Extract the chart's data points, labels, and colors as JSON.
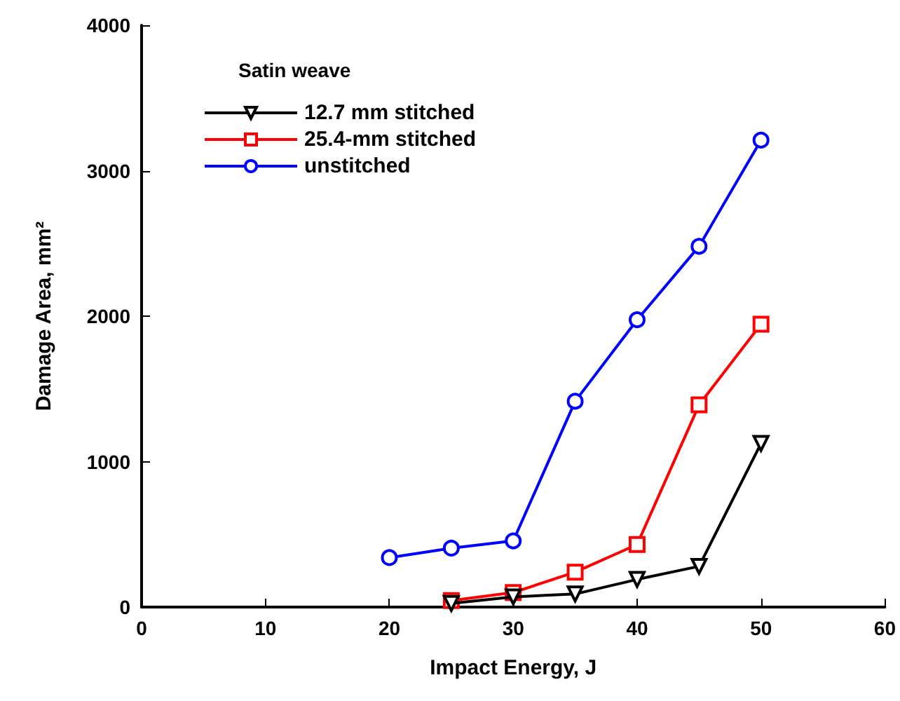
{
  "chart_data": {
    "type": "line",
    "xlabel": "Impact Energy, J",
    "ylabel": "Damage Area, mm²",
    "legend_title": "Satin weave",
    "xlim": [
      0,
      60
    ],
    "xticks": [
      0,
      10,
      20,
      30,
      40,
      50,
      60
    ],
    "ylim": [
      0,
      4000
    ],
    "yticks": [
      0,
      1000,
      2000,
      3000,
      4000
    ],
    "grid": false,
    "legend": "top left",
    "line_style": "solid",
    "series": [
      {
        "name": "12.7 mm stitched",
        "color": "#000000",
        "marker": "triangle",
        "x": [
          25,
          30,
          35,
          40,
          45,
          50
        ],
        "values": [
          25,
          70,
          90,
          190,
          280,
          1125
        ]
      },
      {
        "name": "25.4-mm stitched",
        "color": "#ff0000",
        "marker": "square",
        "x": [
          25,
          30,
          35,
          40,
          45,
          50
        ],
        "values": [
          45,
          100,
          240,
          430,
          1390,
          1945
        ]
      },
      {
        "name": "unstitched",
        "color": "#0000ff",
        "marker": "circle",
        "x": [
          20,
          25,
          30,
          35,
          40,
          45,
          50
        ],
        "values": [
          340,
          405,
          455,
          1415,
          1975,
          2480,
          3210
        ]
      }
    ]
  }
}
